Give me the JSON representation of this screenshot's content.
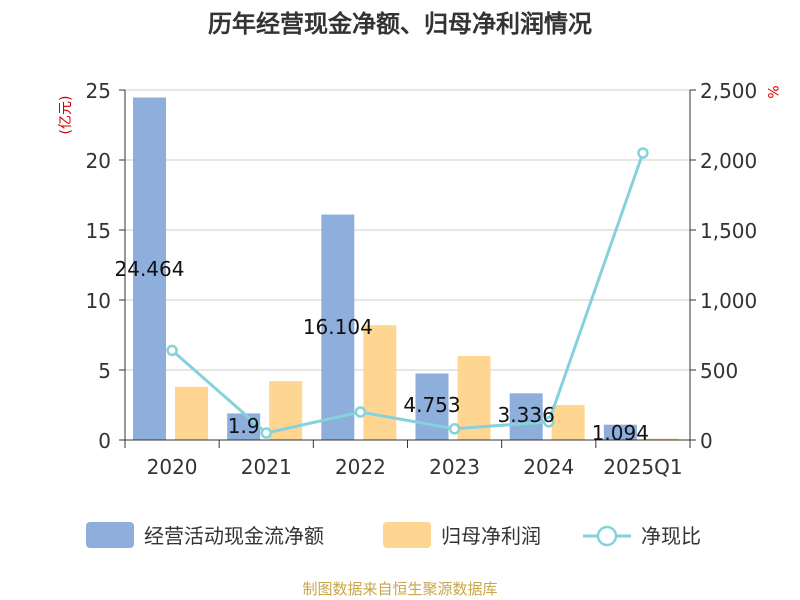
{
  "chart_data": {
    "type": "bar",
    "title": "历年经营现金净额、归母净利润情况",
    "categories": [
      "2020",
      "2021",
      "2022",
      "2023",
      "2024",
      "2025Q1"
    ],
    "y_left_unit": "(亿元)",
    "y_right_unit": "%",
    "y_left_lim": [
      0,
      25
    ],
    "y_left_ticks": [
      "0",
      "5",
      "10",
      "15",
      "20",
      "25"
    ],
    "y_right_lim": [
      0,
      2500
    ],
    "y_right_ticks": [
      "0",
      "500",
      "1,000",
      "1,500",
      "2,000",
      "2,500"
    ],
    "grid": true,
    "legend_position": "bottom",
    "series": [
      {
        "name": "经营活动现金流净额",
        "kind": "bar",
        "axis": "left",
        "color": "#8eaedb",
        "values": [
          24.464,
          1.9,
          16.104,
          4.753,
          3.336,
          1.094
        ],
        "labels": [
          "24.464",
          "1.9",
          "16.104",
          "4.753",
          "3.336",
          "1.094"
        ]
      },
      {
        "name": "归母净利润",
        "kind": "bar",
        "axis": "left",
        "color": "#ffd691",
        "values": [
          3.8,
          4.2,
          8.2,
          6.0,
          2.5,
          0.1
        ]
      },
      {
        "name": "净现比",
        "kind": "line",
        "axis": "right",
        "color": "#86d2dc",
        "values": [
          640,
          50,
          200,
          80,
          130,
          2050
        ]
      }
    ],
    "source": "制图数据来自恒生聚源数据库"
  }
}
